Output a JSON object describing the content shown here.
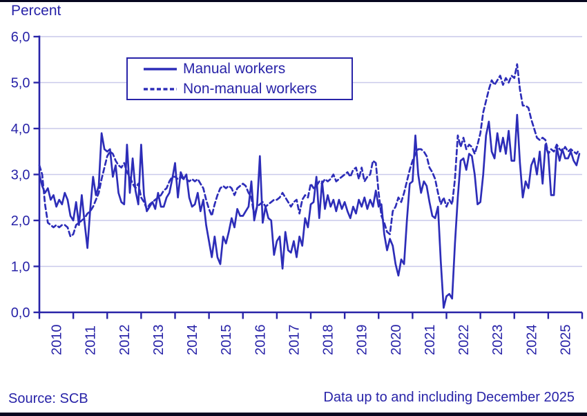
{
  "page": {
    "title": "Percent"
  },
  "legend": {
    "items": [
      {
        "label": "Manual workers",
        "line_style": "solid"
      },
      {
        "label": "Non-manual workers",
        "line_style": "dashed"
      }
    ]
  },
  "footer": {
    "source": "Source: SCB",
    "note": "Data up to and including December 2025"
  },
  "colors": {
    "accent_text": "#2823a8",
    "series_line": "#2d2db8",
    "gridline": "#c9c9ea",
    "edge_bar": "#07071f"
  },
  "chart_data": {
    "type": "line",
    "title": "Percent",
    "x_unit": "month",
    "x_range": [
      "2010-01",
      "2025-12"
    ],
    "year_labels": [
      "2010",
      "2011",
      "2012",
      "2013",
      "2014",
      "2015",
      "2016",
      "2017",
      "2018",
      "2019",
      "2020",
      "2021",
      "2022",
      "2023",
      "2024",
      "2025"
    ],
    "y_axis": {
      "min": 0,
      "max": 6,
      "tick_labels": [
        "0,0",
        "1,0",
        "2,0",
        "3,0",
        "4,0",
        "5,0",
        "6,0"
      ]
    },
    "grid": "horizontal",
    "legend_position": "top-left-inside",
    "series": [
      {
        "name": "Manual workers",
        "style": "solid",
        "values": [
          3.0,
          2.75,
          2.6,
          2.7,
          2.45,
          2.55,
          2.3,
          2.45,
          2.35,
          2.6,
          2.45,
          2.1,
          2.0,
          2.4,
          1.9,
          2.55,
          1.95,
          1.4,
          2.25,
          2.95,
          2.55,
          2.75,
          3.9,
          3.55,
          3.5,
          3.55,
          2.95,
          3.2,
          2.6,
          2.4,
          2.35,
          3.65,
          2.6,
          3.35,
          2.65,
          2.35,
          3.65,
          2.55,
          2.2,
          2.3,
          2.4,
          2.25,
          2.6,
          2.3,
          2.3,
          2.5,
          2.6,
          2.9,
          3.25,
          2.5,
          3.05,
          2.9,
          3.0,
          2.5,
          2.3,
          2.35,
          2.6,
          2.2,
          2.45,
          1.9,
          1.55,
          1.2,
          1.65,
          1.2,
          1.05,
          1.65,
          1.5,
          1.75,
          2.05,
          1.85,
          2.25,
          2.1,
          2.1,
          2.2,
          2.3,
          2.85,
          2.0,
          2.3,
          3.4,
          1.95,
          2.3,
          2.05,
          2.0,
          1.25,
          1.55,
          1.65,
          0.95,
          1.75,
          1.35,
          1.3,
          1.55,
          1.2,
          1.65,
          1.45,
          2.05,
          1.85,
          2.35,
          2.4,
          2.95,
          2.05,
          2.85,
          2.25,
          2.55,
          2.3,
          2.45,
          2.2,
          2.45,
          2.25,
          2.4,
          2.2,
          2.05,
          2.3,
          2.15,
          2.45,
          2.3,
          2.5,
          2.25,
          2.45,
          2.3,
          2.65,
          2.3,
          2.35,
          1.7,
          1.35,
          1.6,
          1.45,
          1.05,
          0.8,
          1.15,
          1.05,
          2.0,
          2.8,
          2.85,
          3.85,
          3.0,
          2.6,
          2.85,
          2.75,
          2.4,
          2.1,
          2.05,
          2.3,
          1.1,
          0.1,
          0.35,
          0.4,
          0.3,
          1.5,
          2.5,
          3.3,
          3.35,
          3.1,
          3.45,
          3.4,
          3.0,
          2.35,
          2.4,
          3.0,
          3.85,
          4.15,
          3.5,
          3.35,
          3.9,
          3.5,
          3.8,
          3.45,
          3.95,
          3.3,
          3.3,
          4.3,
          3.25,
          2.5,
          2.85,
          2.7,
          3.2,
          3.35,
          3.0,
          3.5,
          2.8,
          3.65,
          3.45,
          2.55,
          2.55,
          3.6,
          3.3,
          3.55,
          3.35,
          3.35,
          3.5,
          3.3,
          3.2,
          3.45
        ]
      },
      {
        "name": "Non-manual workers",
        "style": "dashed",
        "values": [
          3.2,
          3.0,
          2.35,
          1.95,
          1.9,
          1.85,
          1.9,
          1.85,
          1.9,
          1.9,
          1.85,
          1.65,
          1.7,
          1.9,
          1.95,
          2.0,
          2.05,
          2.15,
          2.2,
          2.3,
          2.45,
          2.6,
          2.9,
          3.15,
          3.4,
          3.5,
          3.45,
          3.3,
          3.2,
          3.15,
          3.25,
          3.05,
          2.95,
          2.8,
          2.7,
          2.8,
          2.5,
          2.4,
          2.25,
          2.35,
          2.4,
          2.45,
          2.5,
          2.55,
          2.65,
          2.7,
          2.85,
          2.95,
          2.95,
          2.9,
          2.95,
          2.9,
          2.9,
          2.85,
          2.9,
          2.85,
          2.9,
          2.8,
          2.7,
          2.45,
          2.25,
          2.1,
          2.35,
          2.55,
          2.7,
          2.75,
          2.7,
          2.75,
          2.7,
          2.55,
          2.7,
          2.75,
          2.8,
          2.75,
          2.6,
          2.5,
          2.1,
          2.3,
          2.35,
          2.4,
          2.3,
          2.35,
          2.4,
          2.45,
          2.45,
          2.5,
          2.6,
          2.5,
          2.4,
          2.3,
          2.4,
          2.45,
          2.15,
          2.45,
          2.55,
          2.5,
          2.8,
          2.7,
          2.75,
          2.85,
          2.8,
          2.9,
          2.85,
          2.9,
          3.0,
          2.85,
          2.9,
          2.95,
          3.0,
          3.05,
          2.95,
          3.1,
          3.15,
          2.9,
          3.15,
          2.85,
          2.95,
          3.0,
          3.3,
          3.25,
          2.6,
          2.1,
          1.95,
          1.75,
          1.7,
          2.2,
          2.3,
          2.5,
          2.4,
          2.6,
          2.85,
          3.1,
          3.3,
          3.45,
          3.55,
          3.55,
          3.5,
          3.4,
          3.15,
          3.05,
          2.9,
          2.6,
          2.35,
          2.5,
          2.3,
          2.45,
          2.35,
          2.9,
          3.85,
          3.6,
          3.8,
          3.55,
          3.65,
          3.6,
          3.45,
          3.65,
          3.9,
          4.35,
          4.6,
          4.85,
          5.05,
          4.95,
          5.05,
          5.15,
          4.95,
          5.1,
          5.0,
          5.15,
          5.1,
          5.4,
          4.85,
          4.5,
          4.5,
          4.45,
          4.2,
          4.0,
          3.8,
          3.75,
          3.8,
          3.75,
          3.45,
          3.55,
          3.5,
          3.65,
          3.55,
          3.5,
          3.6,
          3.5,
          3.55,
          3.5,
          3.45,
          3.55
        ]
      }
    ]
  }
}
